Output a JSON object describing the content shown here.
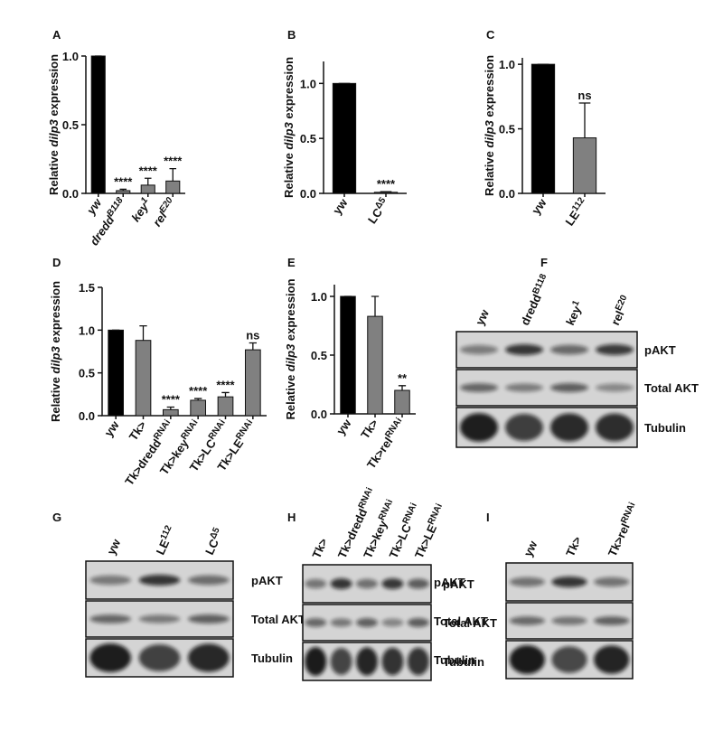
{
  "chart_data": [
    {
      "type": "bar",
      "panel": "A",
      "ylabel": [
        "Relative ",
        "dilp3",
        " expression"
      ],
      "italic_categories": true,
      "categories": [
        [
          "yw"
        ],
        [
          "dredd",
          "B118"
        ],
        [
          "key",
          "1"
        ],
        [
          "rel",
          "E20"
        ]
      ],
      "values": [
        1.0,
        0.02,
        0.06,
        0.09
      ],
      "errors": [
        0,
        0.01,
        0.05,
        0.09
      ],
      "annotations": [
        null,
        "****",
        "****",
        "****"
      ],
      "colors": [
        "#000000",
        "#808080",
        "#808080",
        "#808080"
      ],
      "ylim": [
        0,
        1.0
      ],
      "yticks": [
        {
          "value": 0,
          "label": "0.0"
        },
        {
          "value": 0.5,
          "label": "0.5"
        },
        {
          "value": 1.0,
          "label": "1.0"
        }
      ]
    },
    {
      "type": "bar",
      "panel": "B",
      "ylabel": [
        "Relative ",
        "dilp3",
        " expression"
      ],
      "categories": [
        [
          "yw"
        ],
        [
          "LC",
          "Δ5"
        ]
      ],
      "values": [
        1.0,
        0.01
      ],
      "errors": [
        0,
        0.005
      ],
      "annotations": [
        null,
        "****"
      ],
      "colors": [
        "#000000",
        "#808080"
      ],
      "ylim": [
        0,
        1.2
      ],
      "yticks": [
        {
          "value": 0,
          "label": "0.0"
        },
        {
          "value": 0.5,
          "label": "0.5"
        },
        {
          "value": 1.0,
          "label": "1.0"
        }
      ]
    },
    {
      "type": "bar",
      "panel": "C",
      "ylabel": [
        "Relative ",
        "dilp3",
        " expression"
      ],
      "categories": [
        [
          "yw"
        ],
        [
          "LE",
          "112"
        ]
      ],
      "values": [
        1.0,
        0.43
      ],
      "errors": [
        0,
        0.27
      ],
      "annotations": [
        null,
        "ns"
      ],
      "colors": [
        "#000000",
        "#808080"
      ],
      "ylim": [
        0,
        1.05
      ],
      "yticks": [
        {
          "value": 0,
          "label": "0.0"
        },
        {
          "value": 0.5,
          "label": "0.5"
        },
        {
          "value": 1.0,
          "label": "1.0"
        }
      ]
    },
    {
      "type": "bar",
      "panel": "D",
      "ylabel": [
        "Relative ",
        "dilp3",
        " expression"
      ],
      "categories": [
        [
          "yw"
        ],
        [
          "Tk>"
        ],
        [
          "Tk>dredd",
          "RNAi"
        ],
        [
          "Tk>key",
          "RNAi"
        ],
        [
          "Tk>LC",
          "RNAi"
        ],
        [
          "Tk>LE",
          "RNAi"
        ]
      ],
      "values": [
        1.0,
        0.88,
        0.07,
        0.18,
        0.22,
        0.77
      ],
      "errors": [
        0,
        0.17,
        0.03,
        0.02,
        0.05,
        0.08
      ],
      "annotations": [
        null,
        null,
        "****",
        "****",
        "****",
        "ns"
      ],
      "colors": [
        "#000000",
        "#808080",
        "#808080",
        "#808080",
        "#808080",
        "#808080"
      ],
      "ylim": [
        0,
        1.5
      ],
      "yticks": [
        {
          "value": 0,
          "label": "0.0"
        },
        {
          "value": 0.5,
          "label": "0.5"
        },
        {
          "value": 1.0,
          "label": "1.0"
        },
        {
          "value": 1.5,
          "label": "1.5"
        }
      ]
    },
    {
      "type": "bar",
      "panel": "E",
      "ylabel": [
        "Relative ",
        "dilp3",
        " expression"
      ],
      "categories": [
        [
          "yw"
        ],
        [
          "Tk>"
        ],
        [
          "Tk>rel",
          "RNAi"
        ]
      ],
      "values": [
        1.0,
        0.83,
        0.2
      ],
      "errors": [
        0,
        0.17,
        0.04
      ],
      "annotations": [
        null,
        null,
        "**"
      ],
      "colors": [
        "#000000",
        "#808080",
        "#808080"
      ],
      "ylim": [
        0,
        1.1
      ],
      "yticks": [
        {
          "value": 0,
          "label": "0.0"
        },
        {
          "value": 0.5,
          "label": "0.5"
        },
        {
          "value": 1.0,
          "label": "1.0"
        }
      ]
    }
  ],
  "blots": [
    {
      "panel": "F",
      "lanes": [
        [
          "yw"
        ],
        [
          "dredd",
          "B118"
        ],
        [
          "key",
          "1"
        ],
        [
          "rel",
          "E20"
        ]
      ],
      "rows": [
        "pAKT",
        "Total AKT",
        "Tubulin"
      ]
    },
    {
      "panel": "G",
      "lanes": [
        [
          "yw"
        ],
        [
          "LE",
          "112"
        ],
        [
          "LC",
          "Δ5"
        ]
      ],
      "rows": [
        "pAKT",
        "Total AKT",
        "Tubulin"
      ]
    },
    {
      "panel": "H",
      "lanes": [
        [
          "Tk>"
        ],
        [
          "Tk>dredd",
          "RNAi"
        ],
        [
          "Tk>key",
          "RNAi"
        ],
        [
          "Tk>LC",
          "RNAi"
        ],
        [
          "Tk>LE",
          "RNAi"
        ]
      ],
      "rows": [
        "pAKT",
        "Total AKT",
        "Tubulin"
      ]
    },
    {
      "panel": "I",
      "lanes": [
        [
          "yw"
        ],
        [
          "Tk>"
        ],
        [
          "Tk>rel",
          "RNAi"
        ]
      ],
      "rows": [
        "pAKT",
        "Total AKT",
        "Tubulin"
      ]
    }
  ]
}
